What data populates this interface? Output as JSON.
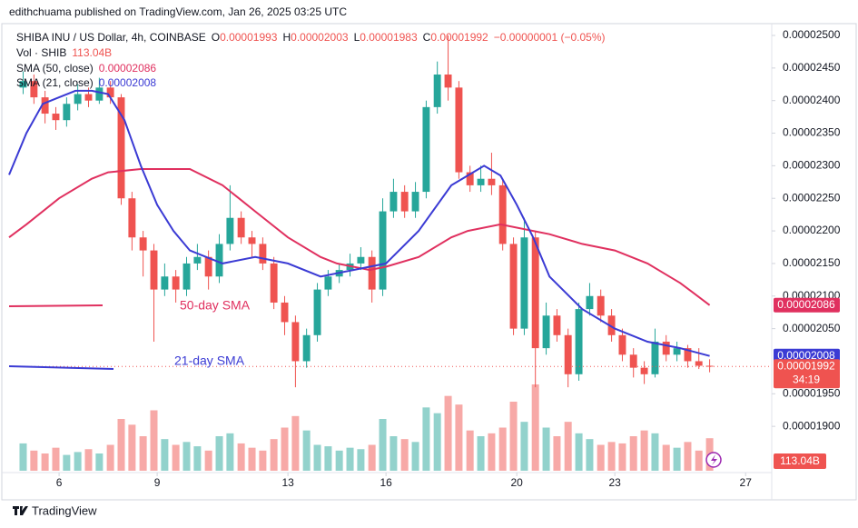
{
  "header": {
    "publisher": "edithchuama published on TradingView.com, Jan 26, 2025 03:25 UTC"
  },
  "footer": {
    "brand": "TradingView"
  },
  "chart_data": {
    "type": "candlestick",
    "symbol": "SHIBA INU / US Dollar, 4h, COINBASE",
    "legend_items": [
      {
        "label": "O",
        "value": 1.993e-05
      },
      {
        "label": "H",
        "value": 2.003e-05
      },
      {
        "label": "L",
        "value": 1.983e-05
      },
      {
        "label": "C",
        "value": 1.992e-05
      }
    ],
    "change": "−0.00000001 (−0.05%)",
    "up_color": "#26a69a",
    "down_color": "#ef5350",
    "xlim": [
      4.47,
      27.8
    ],
    "xticks": [
      6,
      9,
      13,
      16,
      20,
      23,
      27
    ],
    "ylim": [
      1.85e-05,
      2.5e-05
    ],
    "yticks": [
      {
        "value": 2.5e-05,
        "label": "0.00002500"
      },
      {
        "value": 2.45e-05,
        "label": "0.00002450"
      },
      {
        "value": 2.4e-05,
        "label": "0.00002400"
      },
      {
        "value": 2.35e-05,
        "label": "0.00002350"
      },
      {
        "value": 2.3e-05,
        "label": "0.00002300"
      },
      {
        "value": 2.25e-05,
        "label": "0.00002250"
      },
      {
        "value": 2.2e-05,
        "label": "0.00002200"
      },
      {
        "value": 2.15e-05,
        "label": "0.00002150"
      },
      {
        "value": 2.1e-05,
        "label": "0.00002100"
      },
      {
        "value": 2.05e-05,
        "label": "0.00002050"
      },
      {
        "value": 1.95e-05,
        "label": "0.00001950"
      },
      {
        "value": 1.9e-05,
        "label": "0.00001900"
      }
    ],
    "x": [
      4.9,
      5.23,
      5.57,
      5.9,
      6.23,
      6.57,
      6.9,
      7.23,
      7.57,
      7.9,
      8.23,
      8.57,
      8.9,
      9.23,
      9.57,
      9.9,
      10.23,
      10.57,
      10.9,
      11.23,
      11.57,
      11.9,
      12.23,
      12.57,
      12.9,
      13.23,
      13.57,
      13.9,
      14.23,
      14.57,
      14.9,
      15.23,
      15.57,
      15.9,
      16.23,
      16.57,
      16.9,
      17.23,
      17.57,
      17.9,
      18.23,
      18.57,
      18.9,
      19.23,
      19.57,
      19.9,
      20.23,
      20.57,
      20.9,
      21.23,
      21.57,
      21.9,
      22.23,
      22.57,
      22.9,
      23.23,
      23.57,
      23.9,
      24.23,
      24.57,
      24.9,
      25.23,
      25.57,
      25.9
    ],
    "open": [
      2.42e-05,
      2.43e-05,
      2.405e-05,
      2.38e-05,
      2.37e-05,
      2.395e-05,
      2.41e-05,
      2.4e-05,
      2.42e-05,
      2.405e-05,
      2.25e-05,
      2.19e-05,
      2.17e-05,
      2.11e-05,
      2.13e-05,
      2.11e-05,
      2.15e-05,
      2.16e-05,
      2.13e-05,
      2.18e-05,
      2.22e-05,
      2.19e-05,
      2.18e-05,
      2.15e-05,
      2.09e-05,
      2.06e-05,
      2e-05,
      2.04e-05,
      2.11e-05,
      2.13e-05,
      2.14e-05,
      2.15e-05,
      2.16e-05,
      2.11e-05,
      2.23e-05,
      2.26e-05,
      2.23e-05,
      2.26e-05,
      2.39e-05,
      2.44e-05,
      2.42e-05,
      2.29e-05,
      2.27e-05,
      2.28e-05,
      2.27e-05,
      2.18e-05,
      2.05e-05,
      2.19e-05,
      2.02e-05,
      2.07e-05,
      2.04e-05,
      1.98e-05,
      2.08e-05,
      2.1e-05,
      2.07e-05,
      2.04e-05,
      2.01e-05,
      1.99e-05,
      1.98e-05,
      2.03e-05,
      2.01e-05,
      2.02e-05,
      2e-05,
      1.993e-05
    ],
    "high": [
      2.445e-05,
      2.44e-05,
      2.415e-05,
      2.39e-05,
      2.405e-05,
      2.425e-05,
      2.42e-05,
      2.435e-05,
      2.43e-05,
      2.41e-05,
      2.26e-05,
      2.2e-05,
      2.18e-05,
      2.15e-05,
      2.14e-05,
      2.16e-05,
      2.18e-05,
      2.17e-05,
      2.195e-05,
      2.27e-05,
      2.23e-05,
      2.2e-05,
      2.19e-05,
      2.16e-05,
      2.1e-05,
      2.07e-05,
      2.05e-05,
      2.12e-05,
      2.14e-05,
      2.15e-05,
      2.165e-05,
      2.175e-05,
      2.17e-05,
      2.25e-05,
      2.28e-05,
      2.27e-05,
      2.275e-05,
      2.4e-05,
      2.46e-05,
      2.5e-05,
      2.43e-05,
      2.3e-05,
      2.3e-05,
      2.32e-05,
      2.28e-05,
      2.19e-05,
      2.22e-05,
      2.2e-05,
      2.09e-05,
      2.08e-05,
      2.05e-05,
      2.09e-05,
      2.12e-05,
      2.11e-05,
      2.08e-05,
      2.05e-05,
      2.02e-05,
      2e-05,
      2.05e-05,
      2.04e-05,
      2.03e-05,
      2.025e-05,
      2.02e-05,
      2.003e-05
    ],
    "low": [
      2.41e-05,
      2.395e-05,
      2.365e-05,
      2.355e-05,
      2.36e-05,
      2.385e-05,
      2.39e-05,
      2.395e-05,
      2.395e-05,
      2.24e-05,
      2.17e-05,
      2.13e-05,
      2.03e-05,
      2.1e-05,
      2.09e-05,
      2.1e-05,
      2.14e-05,
      2.11e-05,
      2.12e-05,
      2.17e-05,
      2.18e-05,
      2.16e-05,
      2.14e-05,
      2.08e-05,
      2.04e-05,
      1.96e-05,
      1.99e-05,
      2.03e-05,
      2.1e-05,
      2.12e-05,
      2.13e-05,
      2.14e-05,
      2.09e-05,
      2.1e-05,
      2.22e-05,
      2.22e-05,
      2.22e-05,
      2.25e-05,
      2.38e-05,
      2.4e-05,
      2.28e-05,
      2.26e-05,
      2.26e-05,
      2.255e-05,
      2.17e-05,
      2.04e-05,
      2.04e-05,
      1.96e-05,
      2.01e-05,
      2.03e-05,
      1.96e-05,
      1.97e-05,
      2.07e-05,
      2.06e-05,
      2.03e-05,
      2e-05,
      1.975e-05,
      1.965e-05,
      1.975e-05,
      2e-05,
      2e-05,
      1.99e-05,
      1.988e-05,
      1.983e-05
    ],
    "close": [
      2.43e-05,
      2.405e-05,
      2.38e-05,
      2.37e-05,
      2.395e-05,
      2.41e-05,
      2.4e-05,
      2.42e-05,
      2.405e-05,
      2.25e-05,
      2.19e-05,
      2.17e-05,
      2.11e-05,
      2.13e-05,
      2.11e-05,
      2.15e-05,
      2.16e-05,
      2.13e-05,
      2.18e-05,
      2.22e-05,
      2.19e-05,
      2.18e-05,
      2.15e-05,
      2.09e-05,
      2.06e-05,
      2e-05,
      2.04e-05,
      2.11e-05,
      2.13e-05,
      2.14e-05,
      2.15e-05,
      2.16e-05,
      2.11e-05,
      2.23e-05,
      2.26e-05,
      2.23e-05,
      2.26e-05,
      2.39e-05,
      2.44e-05,
      2.42e-05,
      2.29e-05,
      2.27e-05,
      2.28e-05,
      2.27e-05,
      2.18e-05,
      2.05e-05,
      2.19e-05,
      2.02e-05,
      2.07e-05,
      2.04e-05,
      1.98e-05,
      2.08e-05,
      2.1e-05,
      2.07e-05,
      2.04e-05,
      2.01e-05,
      1.99e-05,
      1.98e-05,
      2.03e-05,
      2.01e-05,
      2.02e-05,
      2e-05,
      1.993e-05,
      1.992e-05
    ],
    "volume": {
      "name": "Vol · SHIB",
      "values": [
        95,
        70,
        60,
        80,
        55,
        65,
        75,
        60,
        90,
        180,
        160,
        120,
        210,
        110,
        90,
        100,
        85,
        70,
        120,
        130,
        95,
        80,
        70,
        110,
        150,
        190,
        140,
        90,
        85,
        70,
        80,
        75,
        90,
        180,
        120,
        110,
        100,
        220,
        200,
        260,
        230,
        140,
        120,
        130,
        150,
        240,
        170,
        300,
        150,
        120,
        170,
        130,
        110,
        90,
        100,
        95,
        120,
        140,
        130,
        90,
        80,
        100,
        70,
        113.04
      ],
      "last_label": "113.04B"
    },
    "countdown": "34:19",
    "sma": [
      {
        "name": "SMA (50, close)",
        "color": "#e0305f",
        "x": [
          4.47,
          5,
          6,
          7,
          7.5,
          8.5,
          10,
          11,
          11.5,
          12,
          13,
          14,
          14.5,
          15.5,
          16,
          17,
          18,
          18.5,
          19.5,
          20.5,
          21,
          22,
          23,
          24,
          24.5,
          25,
          25.9
        ],
        "values": [
          2.19e-05,
          2.21e-05,
          2.25e-05,
          2.28e-05,
          2.29e-05,
          2.295e-05,
          2.295e-05,
          2.27e-05,
          2.25e-05,
          2.23e-05,
          2.19e-05,
          2.16e-05,
          2.15e-05,
          2.14e-05,
          2.145e-05,
          2.16e-05,
          2.19e-05,
          2.2e-05,
          2.21e-05,
          2.2e-05,
          2.195e-05,
          2.18e-05,
          2.17e-05,
          2.15e-05,
          2.135e-05,
          2.12e-05,
          2.086e-05
        ]
      },
      {
        "name": "SMA (21, close)",
        "color": "#3b3bd4",
        "x": [
          4.47,
          5,
          5.5,
          6,
          6.5,
          7,
          7.5,
          8,
          8.5,
          9,
          9.5,
          10,
          10.5,
          11,
          12,
          13,
          14,
          15,
          16,
          17,
          18,
          19,
          19.5,
          20,
          20.5,
          21,
          22,
          23,
          24,
          25,
          25.9
        ],
        "values": [
          2.286e-05,
          2.35e-05,
          2.395e-05,
          2.405e-05,
          2.415e-05,
          2.415e-05,
          2.41e-05,
          2.37e-05,
          2.3e-05,
          2.24e-05,
          2.2e-05,
          2.17e-05,
          2.16e-05,
          2.15e-05,
          2.16e-05,
          2.15e-05,
          2.13e-05,
          2.14e-05,
          2.15e-05,
          2.2e-05,
          2.27e-05,
          2.3e-05,
          2.285e-05,
          2.24e-05,
          2.19e-05,
          2.13e-05,
          2.08e-05,
          2.05e-05,
          2.03e-05,
          2.02e-05,
          2.008e-05
        ]
      }
    ],
    "annotations": [
      {
        "text": "50-day SMA",
        "color": "#e0305f"
      },
      {
        "text": "21-day SMA",
        "color": "#3b3bd4"
      }
    ]
  }
}
